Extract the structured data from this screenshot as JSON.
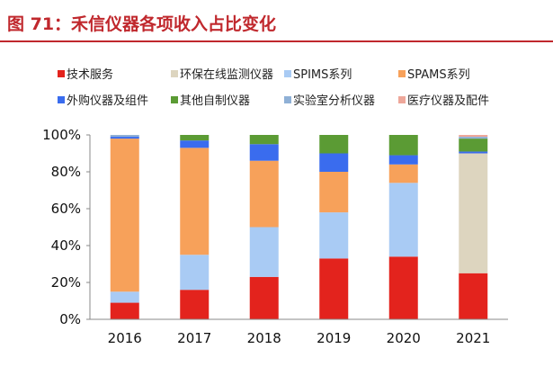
{
  "title": "图 71：禾信仪器各项收入占比变化",
  "chart_data": {
    "type": "bar",
    "stacked": true,
    "categories": [
      "2016",
      "2017",
      "2018",
      "2019",
      "2020",
      "2021"
    ],
    "ylim": [
      0,
      100
    ],
    "yticks": [
      "0%",
      "20%",
      "40%",
      "60%",
      "80%",
      "100%"
    ],
    "grid": false,
    "legend_placement": "top",
    "series": [
      {
        "name": "技术服务",
        "color": "#e3231d",
        "values": [
          9,
          16,
          23,
          33,
          34,
          25
        ]
      },
      {
        "name": "环保在线监测仪器",
        "color": "#ddd5bf",
        "values": [
          0,
          0,
          0,
          0,
          0,
          65
        ]
      },
      {
        "name": "SPIMS系列",
        "color": "#a9cbf4",
        "values": [
          6,
          19,
          27,
          25,
          40,
          0
        ]
      },
      {
        "name": "SPAMS系列",
        "color": "#f7a15a",
        "values": [
          83,
          58,
          36,
          22,
          10,
          0
        ]
      },
      {
        "name": "外购仪器及组件",
        "color": "#3a6cee",
        "values": [
          1,
          4,
          9,
          10,
          5,
          1
        ]
      },
      {
        "name": "其他自制仪器",
        "color": "#5b9b34",
        "values": [
          0,
          3,
          5,
          10,
          11,
          7
        ]
      },
      {
        "name": "实验室分析仪器",
        "color": "#8fb0d6",
        "values": [
          1,
          0,
          0,
          0,
          0,
          1
        ]
      },
      {
        "name": "医疗仪器及配件",
        "color": "#eea79a",
        "values": [
          0,
          0,
          0,
          0,
          0,
          1
        ]
      }
    ]
  }
}
